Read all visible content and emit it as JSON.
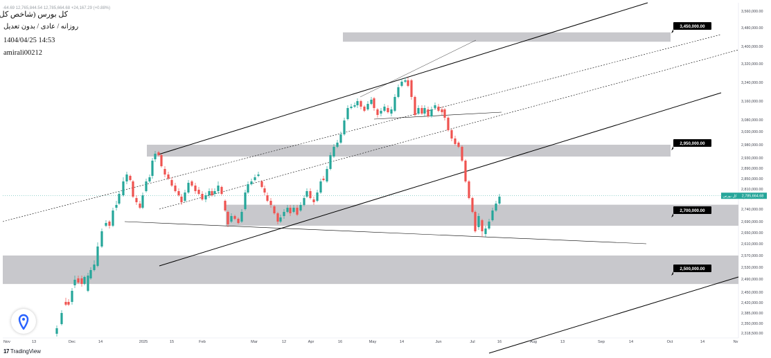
{
  "header": {
    "title": "کل بورس (شاخص کل بورس)",
    "subtitle": "روزانه / عادی / بدون تعدیل",
    "datetime": "1404/04/25 14:53",
    "author": "amirali00212",
    "ohlc_line": "-64.69  12,765,844.54  12,785,664.68  +24,167.29 (+0.88%)"
  },
  "branding": {
    "logo_text": "TradingView",
    "logo_glyph": "17"
  },
  "colors": {
    "up": "#26a69a",
    "down": "#ef5350",
    "zone": "#c8c8cc",
    "line": "#000000",
    "price_tag": "#26a69a",
    "zone_label_bg": "#000000",
    "zone_label_text": "#ffffff"
  },
  "icons": {
    "floating_button": "location-pin-icon"
  },
  "chart_data": {
    "type": "candlestick",
    "x_axis": {
      "labels": [
        "Nov",
        "13",
        "Dec",
        "14",
        "2025",
        "15",
        "Feb",
        "Mar",
        "12",
        "Apr",
        "16",
        "May",
        "14",
        "Jun",
        "Jul",
        "16",
        "Aug",
        "13",
        "Sep",
        "14",
        "Oct",
        "14",
        "Nv"
      ]
    },
    "y_axis": {
      "ticks": [
        "3,560,000.00",
        "3,480,000.00",
        "3,400,000.00",
        "3,320,000.00",
        "3,240,000.00",
        "3,160,000.00",
        "3,080,000.00",
        "3,030,000.00",
        "2,980,000.00",
        "2,930,000.00",
        "2,890,000.00",
        "2,850,000.00",
        "2,810,000.00",
        "2,780,000.00",
        "2,740,000.00",
        "2,690,000.00",
        "2,650,000.00",
        "2,610,000.00",
        "2,570,000.00",
        "2,530,000.00",
        "2,490,000.00",
        "2,450,000.00",
        "2,420,000.00",
        "2,385,000.00",
        "2,350,000.00",
        "2,318,500.00"
      ]
    },
    "current_price": {
      "label": "2,785,664.68",
      "tag": "کل بورس"
    },
    "zones": [
      {
        "label": "3,450,000.00",
        "upper": 3460000,
        "lower": 3420000
      },
      {
        "label": "2,950,000.00",
        "upper": 2980000,
        "lower": 2935000
      },
      {
        "label": "2,700,000.00",
        "upper": 2755000,
        "lower": 2675000
      },
      {
        "label": "2,500,000.00",
        "upper": 2570000,
        "lower": 2475000
      }
    ]
  }
}
